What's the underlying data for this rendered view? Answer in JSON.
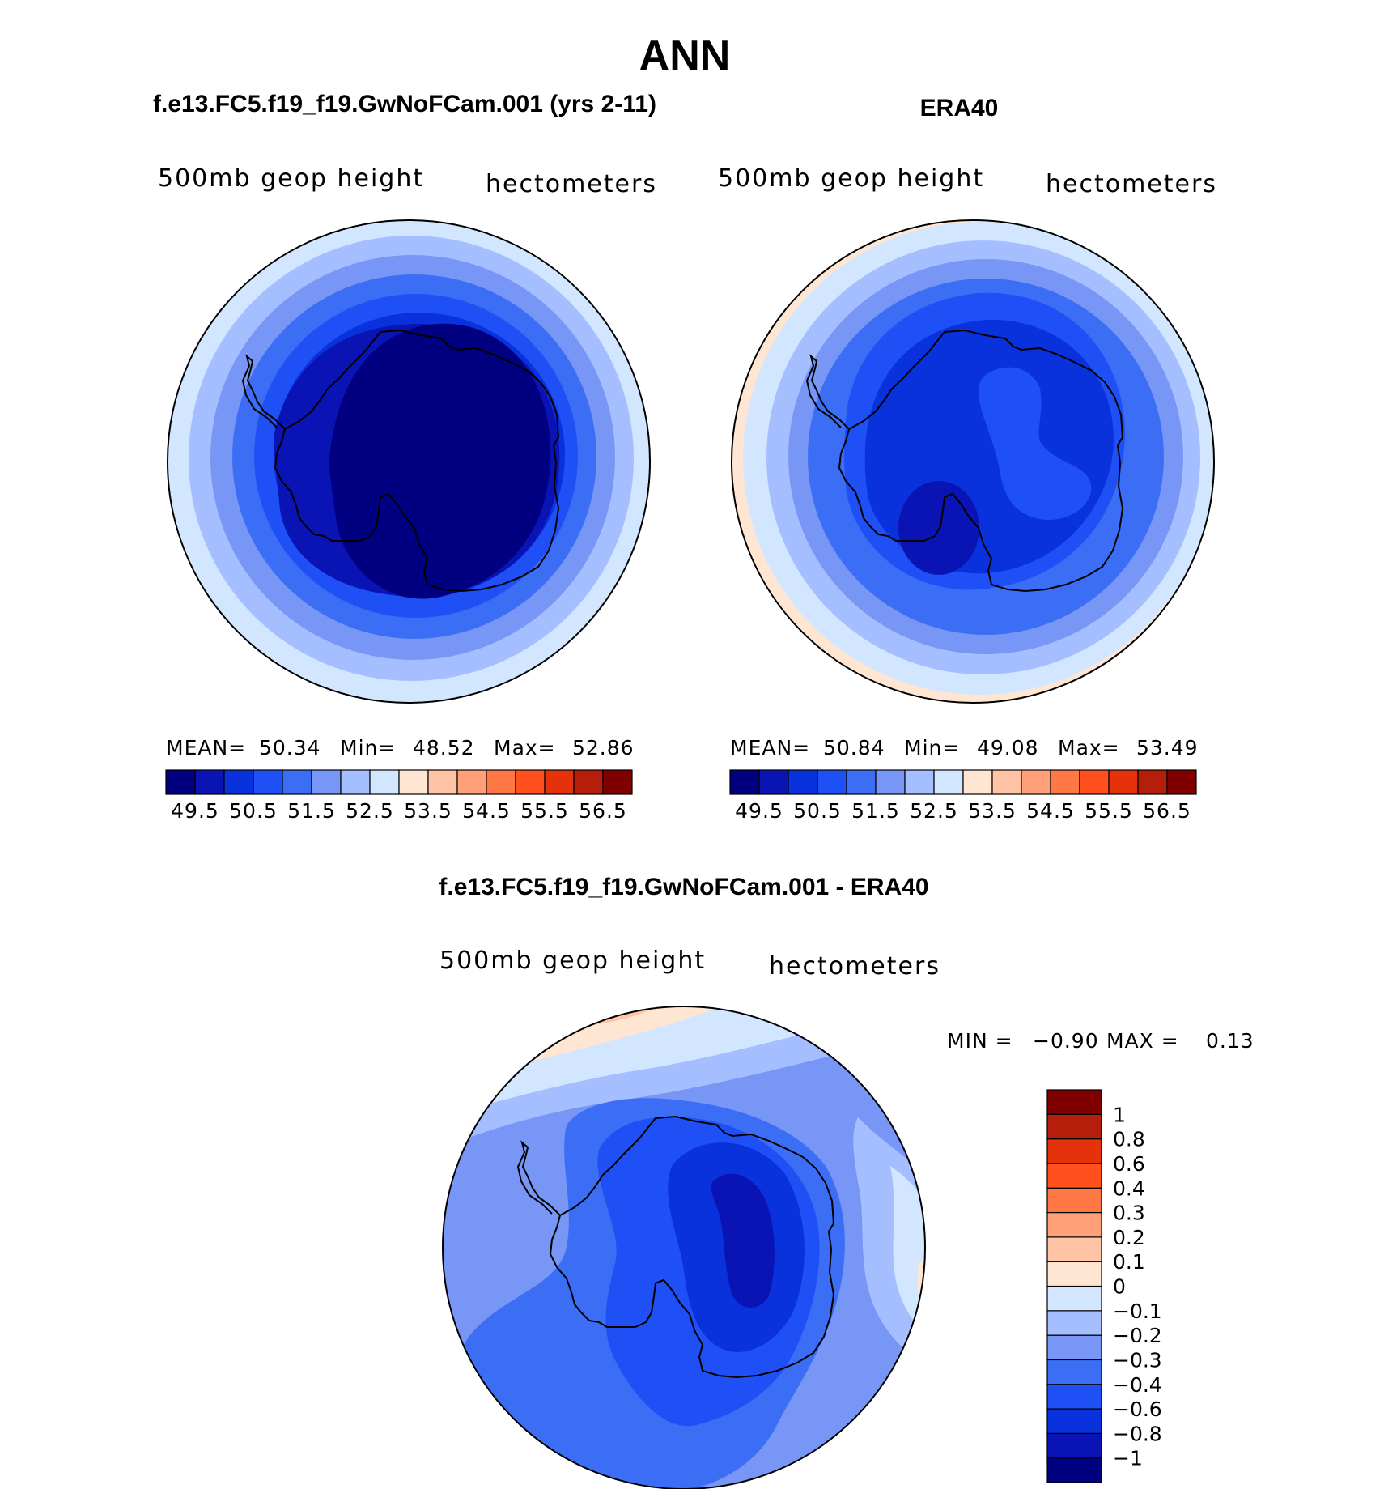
{
  "title": "ANN",
  "palette": [
    "#000080",
    "#0a14b4",
    "#0a32dc",
    "#1e50f5",
    "#3c6ef5",
    "#7896f5",
    "#a5beff",
    "#d2e6ff",
    "#ffe6d2",
    "#ffc3a5",
    "#ffa078",
    "#ff7846",
    "#ff501e",
    "#e6320a",
    "#b41e0a",
    "#800000"
  ],
  "ocean_color": "#ffffff",
  "land_outline": "Antarctica coastline",
  "panels": [
    {
      "id": "model",
      "title": "f.e13.FC5.f19_f19.GwNoFCam.001 (yrs 2-11)",
      "variable": "500mb geop height",
      "units": "hectometers",
      "stats": {
        "mean_label": "MEAN=",
        "mean": "50.34",
        "min_label": "Min=",
        "min": "48.52",
        "max_label": "Max=",
        "max": "52.86"
      },
      "colorbar_labels": [
        "49.5",
        "50.5",
        "51.5",
        "52.5",
        "53.5",
        "54.5",
        "55.5",
        "56.5"
      ]
    },
    {
      "id": "obs",
      "title": "ERA40",
      "variable": "500mb geop height",
      "units": "hectometers",
      "stats": {
        "mean_label": "MEAN=",
        "mean": "50.84",
        "min_label": "Min=",
        "min": "49.08",
        "max_label": "Max=",
        "max": "53.49"
      },
      "colorbar_labels": [
        "49.5",
        "50.5",
        "51.5",
        "52.5",
        "53.5",
        "54.5",
        "55.5",
        "56.5"
      ]
    },
    {
      "id": "diff",
      "title": "f.e13.FC5.f19_f19.GwNoFCam.001 - ERA40",
      "variable": "500mb geop height",
      "units": "hectometers",
      "stats": {
        "min_label": "MIN =",
        "min": "−0.90",
        "max_label": "MAX =",
        "max": "0.13"
      },
      "colorbar_labels": [
        "1",
        "0.8",
        "0.6",
        "0.4",
        "0.3",
        "0.2",
        "0.1",
        "0",
        "−0.1",
        "−0.2",
        "−0.3",
        "−0.4",
        "−0.6",
        "−0.8",
        "−1"
      ]
    }
  ]
}
